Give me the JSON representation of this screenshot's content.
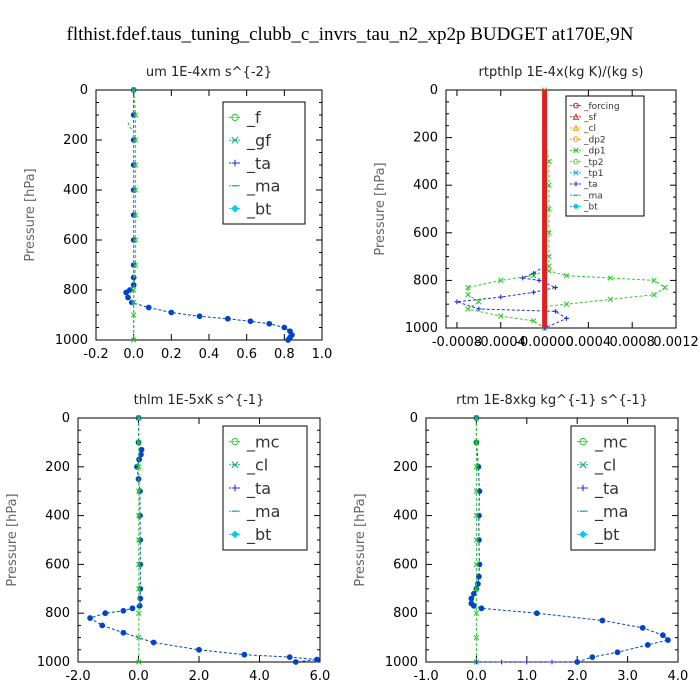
{
  "title": "flthist.fdef.taus_tuning_clubb_c_invrs_tau_n2_xp2p  BUDGET at170E,9N",
  "chart_data": [
    {
      "type": "line",
      "title": "um  1E-4xm s^{-2}",
      "ylabel": "Pressure [hPa]",
      "xlim": [
        -0.2,
        1.0
      ],
      "ylim": [
        1000,
        0
      ],
      "xticks": [
        "-0.2",
        "0.0",
        "0.2",
        "0.4",
        "0.6",
        "0.8",
        "1.0"
      ],
      "yticks": [
        "0",
        "200",
        "400",
        "600",
        "800",
        "1000"
      ],
      "legend_size": "large",
      "legend": [
        {
          "label": "_f",
          "color": "#33cc33",
          "marker": "circle"
        },
        {
          "label": "_gf",
          "color": "#22aa88",
          "marker": "x"
        },
        {
          "label": "_ta",
          "color": "#2233dd",
          "marker": "plus"
        },
        {
          "label": "_ma",
          "color": "#33aadd",
          "marker": "dash"
        },
        {
          "label": "_bt",
          "color": "#00ccee",
          "marker": "diamond"
        }
      ],
      "series": [
        {
          "name": "_ta",
          "color": "#0044cc",
          "marker": "dot",
          "x": [
            0,
            0,
            0,
            0,
            0,
            0,
            0,
            0,
            0,
            0,
            -0.02,
            -0.04,
            -0.03,
            -0.01,
            0.08,
            0.2,
            0.35,
            0.5,
            0.62,
            0.72,
            0.8,
            0.83,
            0.84,
            0.83,
            0.82
          ],
          "y": [
            0,
            100,
            200,
            300,
            400,
            500,
            600,
            700,
            750,
            780,
            800,
            810,
            830,
            850,
            870,
            890,
            905,
            915,
            925,
            935,
            950,
            965,
            980,
            990,
            1000
          ]
        },
        {
          "name": "_f",
          "color": "#33cc33",
          "marker": "x",
          "x": [
            0,
            0.01,
            0.01,
            0.01,
            0.01,
            0.01,
            0.01,
            0.01,
            0.0,
            0.0,
            0.0,
            0.0
          ],
          "y": [
            0,
            100,
            200,
            300,
            400,
            500,
            600,
            700,
            800,
            850,
            900,
            1000
          ]
        },
        {
          "name": "_gf",
          "color": "#22aa88",
          "marker": "none",
          "x": [
            -0.03,
            -0.02,
            0,
            0,
            0
          ],
          "y": [
            130,
            150,
            160,
            200,
            1000
          ]
        }
      ]
    },
    {
      "type": "line",
      "title": "rtpthlp  1E-4x(kg K)/(kg s)",
      "ylabel": "Pressure [hPa]",
      "xlim": [
        -0.0009,
        0.0012
      ],
      "ylim": [
        1000,
        0
      ],
      "xticks": [
        "-0.0008",
        "-0.0004",
        "-0.00000",
        "0.0004",
        "0.0008",
        "0.0012"
      ],
      "xtick_values": [
        -0.0008,
        -0.0004,
        0,
        0.0004,
        0.0008,
        0.0012
      ],
      "yticks": [
        "0",
        "200",
        "400",
        "600",
        "800",
        "1000"
      ],
      "legend_size": "small",
      "legend": [
        {
          "label": "_forcing",
          "color": "#dd2222",
          "marker": "circle"
        },
        {
          "label": "_sf",
          "color": "#dd2222",
          "marker": "triangle"
        },
        {
          "label": "_cl",
          "color": "#eeaa00",
          "marker": "triangle"
        },
        {
          "label": "_dp2",
          "color": "#eeaa00",
          "marker": "circle"
        },
        {
          "label": "_dp1",
          "color": "#33cc33",
          "marker": "x"
        },
        {
          "label": "_tp2",
          "color": "#66dd33",
          "marker": "circle"
        },
        {
          "label": "_tp1",
          "color": "#33aadd",
          "marker": "x"
        },
        {
          "label": "_ta",
          "color": "#2233dd",
          "marker": "plus"
        },
        {
          "label": "_ma",
          "color": "#33aadd",
          "marker": "dash"
        },
        {
          "label": "_bt",
          "color": "#00ccee",
          "marker": "diamond"
        }
      ],
      "series": [
        {
          "name": "_dp1",
          "color": "#33cc33",
          "marker": "x",
          "x": [
            0,
            0,
            4e-05,
            4e-05,
            4e-05,
            4e-05,
            4e-05,
            4e-05,
            4e-05,
            0.0002,
            0.0006,
            0.001,
            0.0011,
            0.001,
            0.0006,
            0.0002,
            0,
            0
          ],
          "y": [
            0,
            200,
            300,
            400,
            500,
            600,
            700,
            740,
            760,
            780,
            790,
            800,
            830,
            860,
            880,
            900,
            910,
            1000
          ]
        },
        {
          "name": "_tp2",
          "color": "#33cc33",
          "marker": "x",
          "x": [
            0,
            -0.0001,
            -0.0004,
            -0.0007,
            -0.0007,
            -0.0006,
            -0.0007,
            -0.0004,
            -0.0001,
            0
          ],
          "y": [
            760,
            780,
            800,
            830,
            860,
            890,
            920,
            950,
            970,
            1000
          ]
        },
        {
          "name": "_ta",
          "color": "#2233dd",
          "marker": "plus",
          "x": [
            0,
            -0.0001,
            -0.0002,
            -5e-05,
            0.0001,
            -0.0001,
            -0.0004,
            -0.0008,
            -0.0006,
            0.0001,
            0.0002,
            0
          ],
          "y": [
            740,
            770,
            790,
            800,
            830,
            850,
            870,
            890,
            920,
            930,
            960,
            1000
          ]
        },
        {
          "name": "_forcing",
          "color": "#dd2222",
          "marker": "none",
          "x": [
            0,
            0
          ],
          "y": [
            0,
            1000
          ]
        }
      ]
    },
    {
      "type": "line",
      "title": "thlm  1E-5xK s^{-1}",
      "ylabel": "Pressure [hPa]",
      "xlim": [
        -2.0,
        6.0
      ],
      "ylim": [
        1000,
        0
      ],
      "xticks": [
        "-2.0",
        "0.0",
        "2.0",
        "4.0",
        "6.0"
      ],
      "yticks": [
        "0",
        "200",
        "400",
        "600",
        "800",
        "1000"
      ],
      "legend_size": "large",
      "legend": [
        {
          "label": "_mc",
          "color": "#33cc33",
          "marker": "circle"
        },
        {
          "label": "_cl",
          "color": "#22aa88",
          "marker": "x"
        },
        {
          "label": "_ta",
          "color": "#2233dd",
          "marker": "plus"
        },
        {
          "label": "_ma",
          "color": "#33aadd",
          "marker": "dash"
        },
        {
          "label": "_bt",
          "color": "#00ccee",
          "marker": "diamond"
        }
      ],
      "series": [
        {
          "name": "_cl",
          "color": "#0044cc",
          "marker": "dot",
          "x": [
            0,
            0,
            0.1,
            0.08,
            0.02,
            -0.05,
            0,
            0.05,
            0.05,
            0.06,
            0.06,
            0.06,
            0.06,
            0.04,
            -0.2,
            -0.5,
            -1.1,
            -1.6,
            -1.2,
            -0.5,
            0.5,
            2.0,
            3.5,
            5.0,
            5.9,
            5.2
          ],
          "y": [
            0,
            100,
            130,
            150,
            170,
            200,
            250,
            300,
            400,
            500,
            600,
            700,
            740,
            770,
            780,
            790,
            800,
            820,
            850,
            880,
            920,
            950,
            970,
            980,
            990,
            1000
          ]
        },
        {
          "name": "_mc",
          "color": "#33cc33",
          "marker": "x",
          "x": [
            0.01,
            0.01,
            0.01,
            0.01,
            0.01,
            0.01,
            0.01,
            0.01,
            0.01,
            0.01,
            0.01
          ],
          "y": [
            0,
            100,
            200,
            300,
            400,
            500,
            600,
            700,
            800,
            900,
            1000
          ]
        }
      ]
    },
    {
      "type": "line",
      "title": "rtm  1E-8xkg kg^{-1} s^{-1}",
      "ylabel": "Pressure [hPa]",
      "xlim": [
        -1.0,
        4.0
      ],
      "ylim": [
        1000,
        0
      ],
      "xticks": [
        "-1.0",
        "0.0",
        "1.0",
        "2.0",
        "3.0",
        "4.0"
      ],
      "yticks": [
        "0",
        "200",
        "400",
        "600",
        "800",
        "1000"
      ],
      "legend_size": "large",
      "legend": [
        {
          "label": "_mc",
          "color": "#33cc33",
          "marker": "circle"
        },
        {
          "label": "_cl",
          "color": "#22aa88",
          "marker": "x"
        },
        {
          "label": "_ta",
          "color": "#2233dd",
          "marker": "plus"
        },
        {
          "label": "_ma",
          "color": "#33aadd",
          "marker": "dash"
        },
        {
          "label": "_bt",
          "color": "#00ccee",
          "marker": "diamond"
        }
      ],
      "series": [
        {
          "name": "_cl",
          "color": "#0044cc",
          "marker": "dot",
          "x": [
            0,
            0,
            0.04,
            0.06,
            0.05,
            0.05,
            0.06,
            0.05,
            0.03,
            0,
            -0.05,
            -0.1,
            -0.1,
            -0.05,
            0.1,
            1.2,
            2.5,
            3.3,
            3.7,
            3.8,
            3.4,
            2.8,
            2.3,
            2.0
          ],
          "y": [
            0,
            100,
            200,
            300,
            400,
            500,
            600,
            650,
            680,
            700,
            720,
            740,
            760,
            770,
            780,
            800,
            830,
            860,
            890,
            910,
            930,
            960,
            980,
            1000
          ]
        },
        {
          "name": "_mc",
          "color": "#33cc33",
          "marker": "x",
          "x": [
            0,
            0,
            0,
            0,
            0,
            0,
            0,
            0,
            0,
            0,
            0
          ],
          "y": [
            0,
            100,
            200,
            300,
            400,
            500,
            600,
            700,
            800,
            900,
            1000
          ]
        },
        {
          "name": "_ta",
          "color": "#2233dd",
          "marker": "plus",
          "x": [
            0,
            0.5,
            1.0,
            1.5,
            2.0
          ],
          "y": [
            1000,
            1000,
            1000,
            1000,
            1000
          ]
        }
      ]
    }
  ]
}
